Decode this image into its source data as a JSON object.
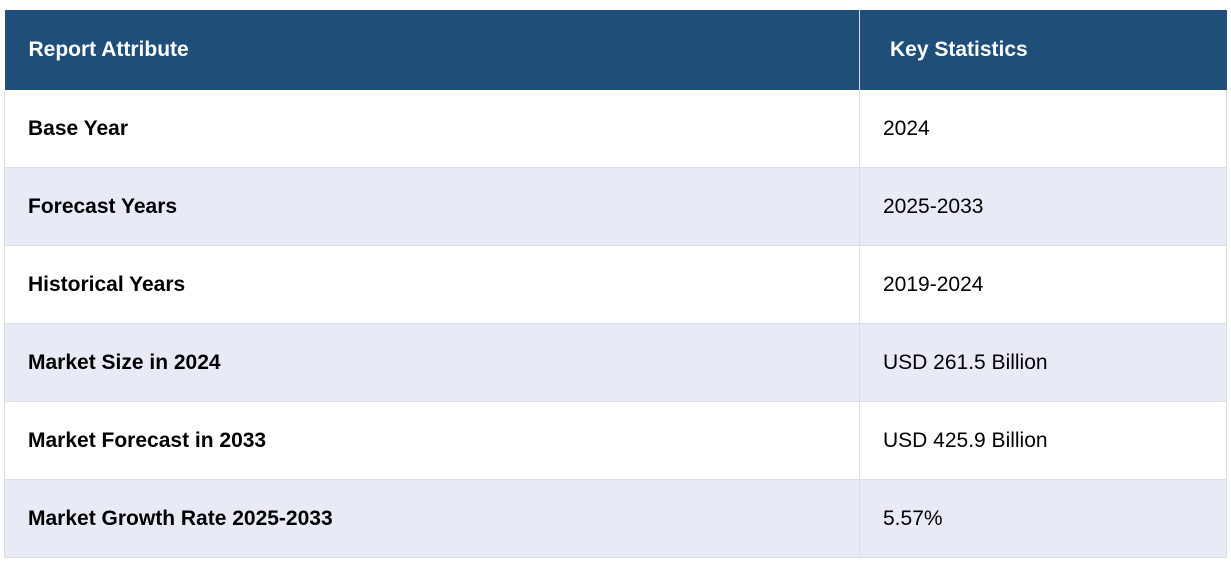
{
  "table": {
    "headers": [
      "Report Attribute",
      "Key Statistics"
    ],
    "rows": [
      {
        "attribute": "Base Year",
        "value": "2024"
      },
      {
        "attribute": "Forecast Years",
        "value": "2025-2033"
      },
      {
        "attribute": "Historical Years",
        "value": "2019-2024"
      },
      {
        "attribute": "Market Size in 2024",
        "value": "USD 261.5 Billion"
      },
      {
        "attribute": "Market Forecast in 2033",
        "value": "USD 425.9 Billion"
      },
      {
        "attribute": "Market Growth Rate 2025-2033",
        "value": "5.57%"
      }
    ]
  },
  "colors": {
    "header_bg": "#1f4e79",
    "header_text": "#ffffff",
    "row_alt_bg": "#e8eaf6",
    "row_bg": "#ffffff"
  }
}
